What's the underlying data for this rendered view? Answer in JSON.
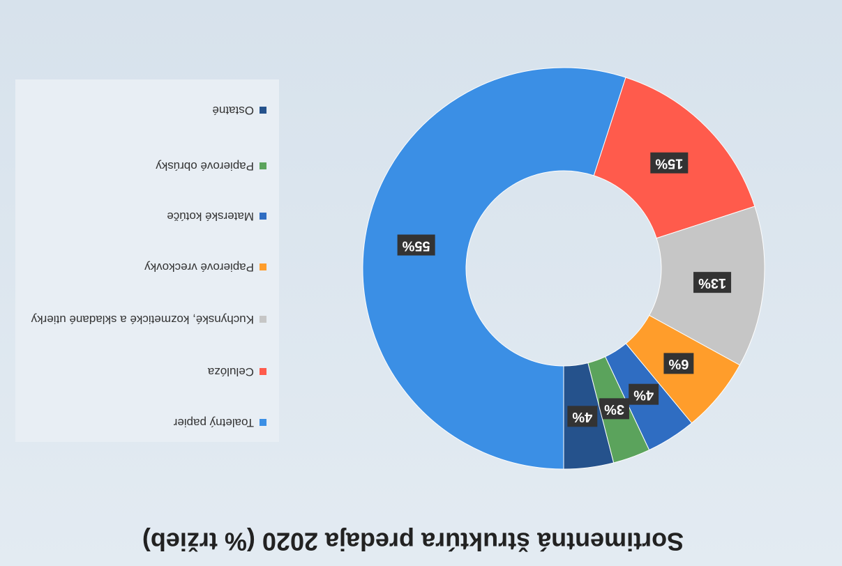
{
  "chart_data": {
    "type": "donut",
    "title": "Sortimentná štruktúra predaja 2020 (% tržieb)",
    "categories": [
      "Toaletný papier",
      "Celulóza",
      "Kuchynské, kozmetické a skladané utierky",
      "Papierové  vreckovky",
      "Materské kotúče",
      "Papierové obrúsky",
      "Ostatné"
    ],
    "values": [
      55,
      15,
      13,
      6,
      4,
      3,
      4
    ],
    "value_labels": [
      "55%",
      "15%",
      "13%",
      "6%",
      "4%",
      "3%",
      "4%"
    ],
    "colors": [
      "#3b8fe5",
      "#ff5b4c",
      "#c6c6c6",
      "#ff9d2b",
      "#2f6dc2",
      "#5ba35c",
      "#25528c"
    ],
    "legend": "right"
  }
}
